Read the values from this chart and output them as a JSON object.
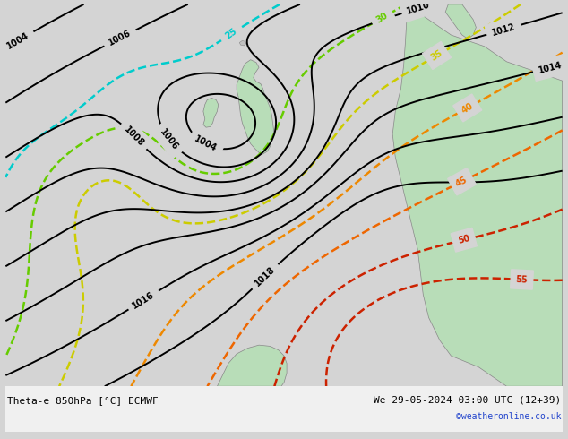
{
  "title_left": "Theta-e 850hPa [°C] ECMWF",
  "title_right": "We 29-05-2024 03:00 UTC (12+39)",
  "copyright": "©weatheronline.co.uk",
  "background_color": "#d4d4d4",
  "land_color": "#b8ddb8",
  "sea_color": "#d4d4d4",
  "pressure_color": "#000000",
  "theta_colors": {
    "25": "#00cccc",
    "30": "#66cc00",
    "35": "#cccc00",
    "40": "#ee8800",
    "45": "#ee6600",
    "50": "#cc2200",
    "55": "#cc2200"
  },
  "figsize": [
    6.34,
    4.9
  ],
  "dpi": 100
}
